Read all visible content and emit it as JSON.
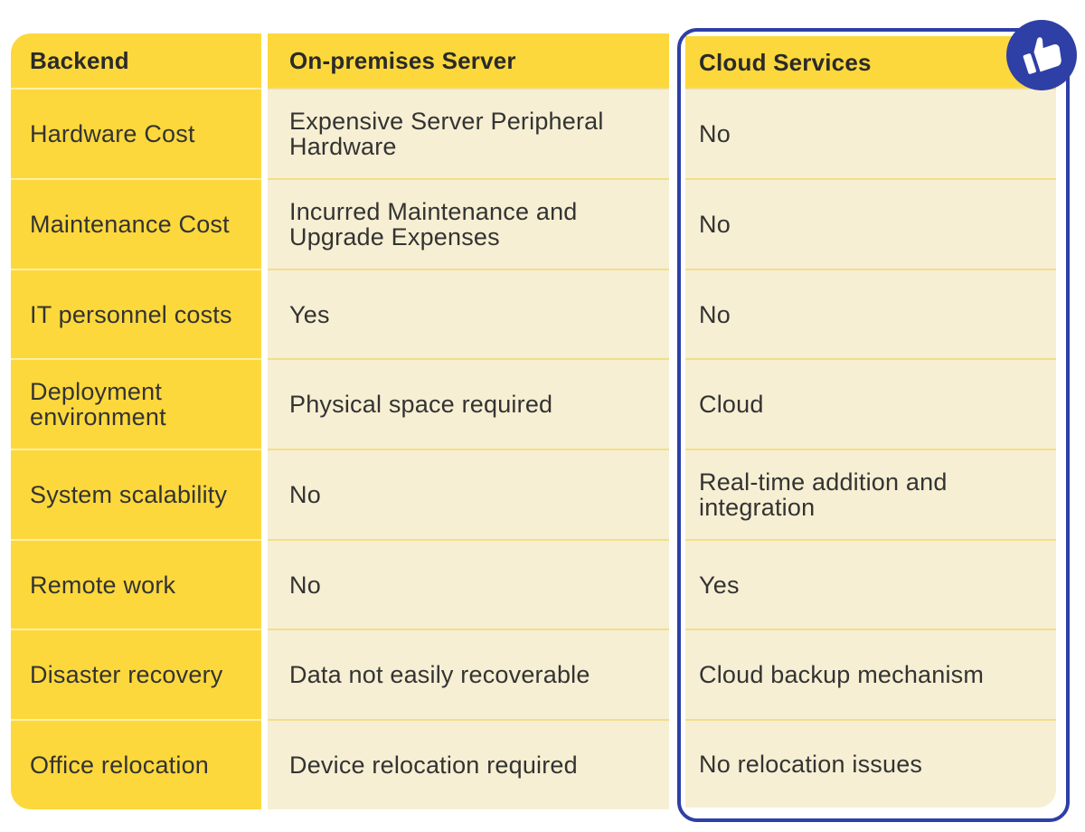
{
  "columns": [
    {
      "header": "Backend",
      "cells": [
        "Hardware Cost",
        "Maintenance Cost",
        "IT personnel costs",
        "Deployment environment",
        "System scalability",
        "Remote work",
        "Disaster recovery",
        "Office relocation"
      ]
    },
    {
      "header": "On-premises Server",
      "cells": [
        "Expensive Server Peripheral Hardware",
        "Incurred Maintenance and Upgrade Expenses",
        "Yes",
        "Physical space required",
        "No",
        "No",
        "Data not easily recoverable",
        "Device relocation required"
      ]
    },
    {
      "header": "Cloud Services",
      "cells": [
        "No",
        "No",
        "No",
        "Cloud",
        "Real-time addition and integration",
        "Yes",
        "Cloud backup mechanism",
        "No relocation issues"
      ]
    }
  ],
  "badge": {
    "icon": "thumbs-up-icon"
  },
  "colors": {
    "accent_yellow": "#fdd83c",
    "cell_cream": "#f7efd3",
    "highlight_blue": "#2e3fa6",
    "text": "#333333"
  }
}
